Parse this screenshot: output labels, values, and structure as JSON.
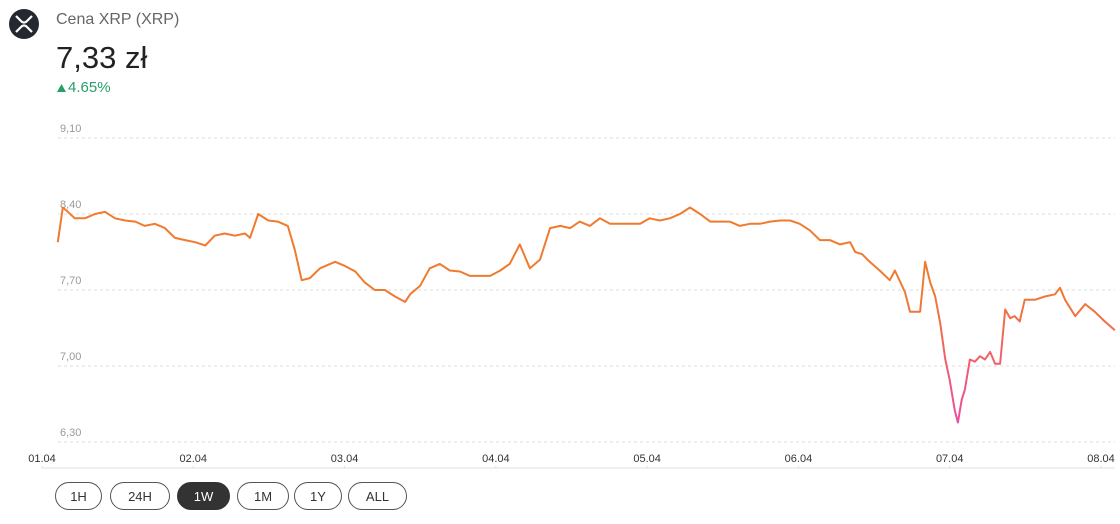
{
  "header": {
    "title": "Cena XRP (XRP)",
    "price": "7,33 zł",
    "change": "4.65%"
  },
  "chart_data": {
    "type": "line",
    "colors": [
      "#f07a2e",
      "#ee3fb9"
    ],
    "xlim": [
      0,
      168
    ],
    "ylim": [
      6.3,
      9.1
    ],
    "xticks": [
      {
        "value": 0,
        "label": "01.04"
      },
      {
        "value": 24,
        "label": "02.04"
      },
      {
        "value": 48,
        "label": "03.04"
      },
      {
        "value": 72,
        "label": "04.04"
      },
      {
        "value": 96,
        "label": "05.04"
      },
      {
        "value": 120,
        "label": "06.04"
      },
      {
        "value": 144,
        "label": "07.04"
      },
      {
        "value": 168,
        "label": "08.04"
      }
    ],
    "yticks": [
      {
        "value": 9.1,
        "label": "9,10"
      },
      {
        "value": 8.4,
        "label": "8,40"
      },
      {
        "value": 7.7,
        "label": "7,70"
      },
      {
        "value": 7.0,
        "label": "7,00"
      },
      {
        "value": 6.3,
        "label": "6,30"
      }
    ],
    "grid": true,
    "x": [
      2.5,
      3.3,
      4.1,
      5.2,
      6.8,
      8.4,
      10,
      11.6,
      13.2,
      14.8,
      16.3,
      17.9,
      19.5,
      21.1,
      22.7,
      24.3,
      25.9,
      27.4,
      29,
      30.6,
      32.2,
      33,
      34.3,
      35.9,
      37.4,
      39,
      40.1,
      41.2,
      42.5,
      44.1,
      46.5,
      48.1,
      49.7,
      51.2,
      52.8,
      54.4,
      56,
      57.6,
      58.4,
      60,
      61.5,
      63.1,
      64.7,
      66.3,
      67.9,
      69.5,
      71.1,
      72.7,
      74.2,
      75.8,
      77.4,
      79,
      80.6,
      82.2,
      83.8,
      85.3,
      86.9,
      88.5,
      90.1,
      91.7,
      93.3,
      94.9,
      96.4,
      98,
      99.6,
      101.2,
      102.8,
      104.4,
      106,
      107.5,
      109.1,
      110.7,
      112.3,
      113.9,
      115.5,
      117.1,
      118.7,
      120.2,
      121.8,
      123.4,
      125,
      126.6,
      128.2,
      129,
      130.1,
      131.3,
      132.9,
      134.5,
      135.3,
      136.9,
      137.7,
      139.3,
      140.1,
      140.9,
      141.7,
      142.5,
      143.3,
      144,
      144.8,
      145.3,
      145.9,
      146.4,
      147.2,
      148,
      148.8,
      149.6,
      150.4,
      151.2,
      152,
      152.8,
      153.6,
      154.3,
      155.1,
      155.9,
      157.5,
      159.1,
      160.7,
      161.5,
      162.3,
      163.9,
      165.5,
      167,
      168.6,
      170.2
    ],
    "values": [
      8.14,
      8.46,
      8.42,
      8.36,
      8.36,
      8.4,
      8.42,
      8.36,
      8.34,
      8.33,
      8.29,
      8.31,
      8.27,
      8.18,
      8.16,
      8.14,
      8.11,
      8.2,
      8.22,
      8.2,
      8.22,
      8.18,
      8.4,
      8.34,
      8.33,
      8.29,
      8.07,
      7.79,
      7.81,
      7.9,
      7.96,
      7.92,
      7.87,
      7.77,
      7.7,
      7.7,
      7.64,
      7.59,
      7.66,
      7.74,
      7.9,
      7.94,
      7.88,
      7.87,
      7.83,
      7.83,
      7.83,
      7.88,
      7.94,
      8.12,
      7.9,
      7.98,
      8.27,
      8.29,
      8.27,
      8.33,
      8.29,
      8.36,
      8.31,
      8.31,
      8.31,
      8.31,
      8.36,
      8.34,
      8.36,
      8.4,
      8.46,
      8.4,
      8.33,
      8.33,
      8.33,
      8.29,
      8.31,
      8.31,
      8.33,
      8.34,
      8.34,
      8.31,
      8.25,
      8.16,
      8.16,
      8.12,
      8.14,
      8.05,
      8.03,
      7.96,
      7.88,
      7.79,
      7.88,
      7.68,
      7.5,
      7.5,
      7.96,
      7.77,
      7.64,
      7.39,
      7.06,
      6.87,
      6.59,
      6.48,
      6.69,
      6.78,
      7.06,
      7.04,
      7.09,
      7.06,
      7.13,
      7.02,
      7.02,
      7.52,
      7.44,
      7.46,
      7.41,
      7.61,
      7.61,
      7.64,
      7.66,
      7.72,
      7.61,
      7.46,
      7.57,
      7.5,
      7.41,
      7.33
    ]
  },
  "range_buttons": {
    "labels": [
      "1H",
      "24H",
      "1W",
      "1M",
      "1Y",
      "ALL"
    ],
    "active": "1W"
  }
}
